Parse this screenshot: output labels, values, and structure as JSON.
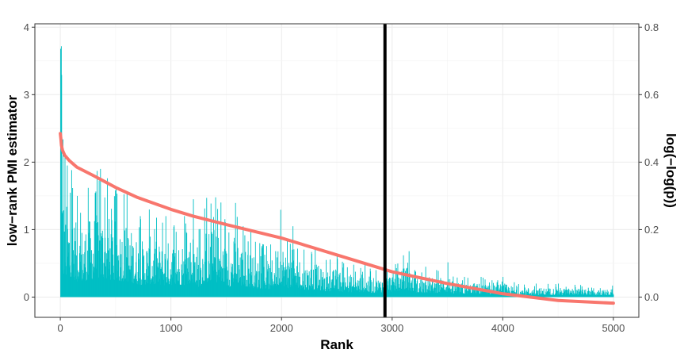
{
  "chart_data": {
    "type": "bar",
    "xlabel": "Rank",
    "ylabel": "low−rank PMI estimator",
    "y2label": "log(−log(p))",
    "xlim": [
      -230,
      5230
    ],
    "ylim": [
      -0.3,
      4.05
    ],
    "y2lim": [
      -0.06,
      0.81
    ],
    "x_ticks": [
      0,
      1000,
      2000,
      3000,
      4000,
      5000
    ],
    "x_tick_labels": [
      "0",
      "1000",
      "2000",
      "3000",
      "4000",
      "5000"
    ],
    "y_ticks": [
      0,
      1,
      2,
      3,
      4
    ],
    "y_tick_labels": [
      "0",
      "1",
      "2",
      "3",
      "4"
    ],
    "y2_ticks": [
      0.0,
      0.2,
      0.4,
      0.6,
      0.8
    ],
    "y2_tick_labels": [
      "0.0",
      "0.2",
      "0.4",
      "0.6",
      "0.8"
    ],
    "grid": true,
    "legend": "none",
    "series": [
      {
        "type": "bar",
        "axis": "left",
        "color": "#00BFC4",
        "n": 5000,
        "peaks": [
          [
            0,
            3.68
          ],
          [
            5,
            3.86
          ],
          [
            10,
            3.15
          ],
          [
            20,
            2.35
          ],
          [
            40,
            2.1
          ],
          [
            60,
            1.95
          ],
          [
            100,
            1.88
          ],
          [
            150,
            1.5
          ],
          [
            250,
            1.62
          ],
          [
            330,
            1.87
          ],
          [
            360,
            1.9
          ],
          [
            500,
            1.6
          ],
          [
            600,
            1.55
          ],
          [
            720,
            1.2
          ],
          [
            800,
            1.3
          ],
          [
            920,
            1.1
          ],
          [
            950,
            1.2
          ],
          [
            1120,
            1.2
          ],
          [
            1200,
            1.45
          ],
          [
            1250,
            1.0
          ],
          [
            1320,
            1.47
          ],
          [
            1400,
            1.48
          ],
          [
            1450,
            1.4
          ],
          [
            1520,
            0.95
          ],
          [
            1580,
            1.4
          ],
          [
            1650,
            1.05
          ],
          [
            1720,
            1.0
          ],
          [
            1760,
            0.82
          ],
          [
            1800,
            0.8
          ],
          [
            1900,
            0.78
          ],
          [
            1990,
            1.3
          ],
          [
            2050,
            0.85
          ],
          [
            2100,
            1.05
          ],
          [
            2200,
            0.7
          ],
          [
            2300,
            0.72
          ],
          [
            2400,
            0.55
          ],
          [
            2500,
            0.62
          ],
          [
            2560,
            0.5
          ],
          [
            2650,
            0.48
          ],
          [
            2750,
            0.5
          ],
          [
            2800,
            0.42
          ],
          [
            2850,
            0.4
          ],
          [
            3100,
            0.62
          ],
          [
            3150,
            0.68
          ],
          [
            3200,
            0.4
          ],
          [
            3300,
            0.45
          ],
          [
            3400,
            0.4
          ],
          [
            3500,
            0.52
          ],
          [
            3550,
            0.3
          ],
          [
            3650,
            0.3
          ],
          [
            3800,
            0.3
          ],
          [
            3900,
            0.25
          ],
          [
            4000,
            0.3
          ],
          [
            4100,
            0.22
          ],
          [
            4300,
            0.2
          ],
          [
            4500,
            0.2
          ],
          [
            4700,
            0.18
          ],
          [
            4800,
            0.14
          ],
          [
            4990,
            0.17
          ]
        ]
      },
      {
        "type": "line",
        "axis": "right",
        "color": "#F8766D",
        "points": [
          [
            0,
            0.485
          ],
          [
            5,
            0.47
          ],
          [
            10,
            0.45
          ],
          [
            20,
            0.435
          ],
          [
            40,
            0.42
          ],
          [
            80,
            0.405
          ],
          [
            150,
            0.385
          ],
          [
            300,
            0.36
          ],
          [
            500,
            0.325
          ],
          [
            700,
            0.295
          ],
          [
            1000,
            0.26
          ],
          [
            1200,
            0.24
          ],
          [
            1500,
            0.215
          ],
          [
            2000,
            0.175
          ],
          [
            2500,
            0.125
          ],
          [
            3000,
            0.075
          ],
          [
            3500,
            0.04
          ],
          [
            4000,
            0.01
          ],
          [
            4500,
            -0.01
          ],
          [
            5000,
            -0.018
          ]
        ]
      }
    ],
    "vline": {
      "x": 2935,
      "color": "#000000"
    }
  }
}
